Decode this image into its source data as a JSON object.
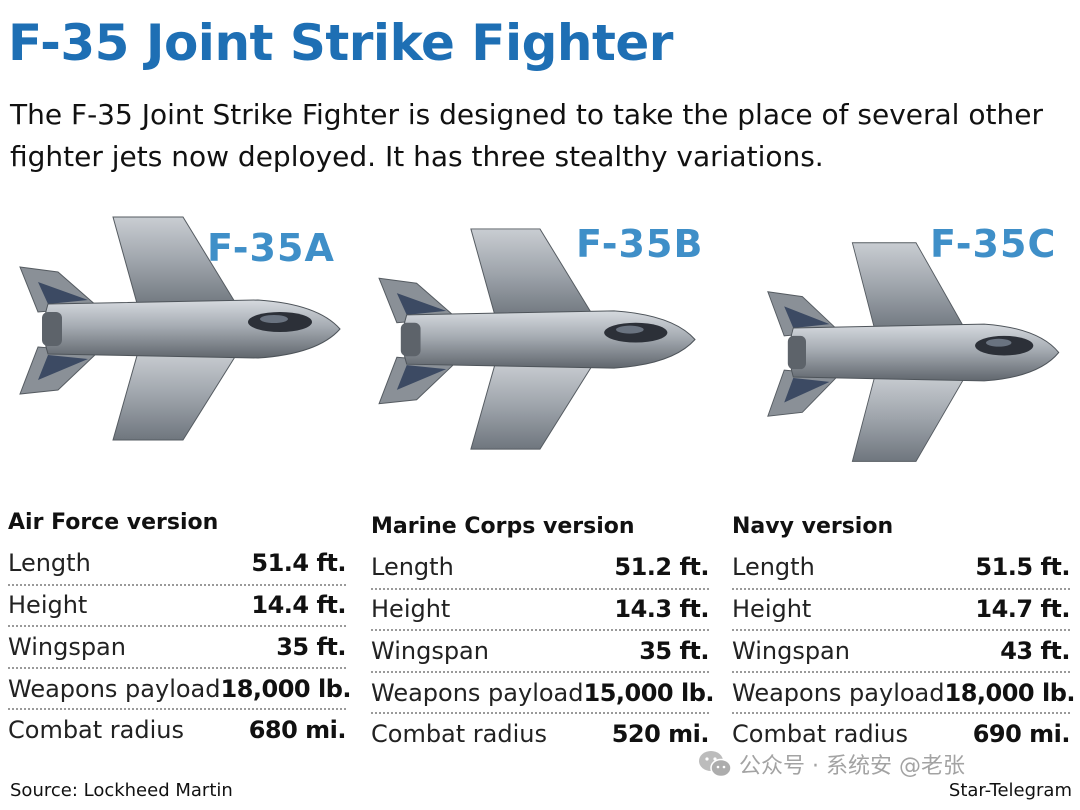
{
  "title": "F-35 Joint Strike Fighter",
  "intro": "The F-35 Joint Strike Fighter is designed to take the place of several other fighter jets now deployed. It has three stealthy variations.",
  "variants": [
    {
      "label": "F-35A",
      "image_icon": "f35a-aircraft-icon",
      "version_title": "Air Force version",
      "specs": [
        {
          "label": "Length",
          "value": "51.4 ft."
        },
        {
          "label": "Height",
          "value": "14.4 ft."
        },
        {
          "label": "Wingspan",
          "value": "35 ft."
        },
        {
          "label": "Weapons payload",
          "value": "18,000 lb."
        },
        {
          "label": "Combat radius",
          "value": "680 mi."
        }
      ]
    },
    {
      "label": "F-35B",
      "image_icon": "f35b-aircraft-icon",
      "version_title": "Marine Corps version",
      "specs": [
        {
          "label": "Length",
          "value": "51.2 ft."
        },
        {
          "label": "Height",
          "value": "14.3 ft."
        },
        {
          "label": "Wingspan",
          "value": "35 ft."
        },
        {
          "label": "Weapons payload",
          "value": "15,000 lb."
        },
        {
          "label": "Combat radius",
          "value": "520 mi."
        }
      ]
    },
    {
      "label": "F-35C",
      "image_icon": "f35c-aircraft-icon",
      "version_title": "Navy version",
      "specs": [
        {
          "label": "Length",
          "value": "51.5 ft."
        },
        {
          "label": "Height",
          "value": "14.7 ft."
        },
        {
          "label": "Wingspan",
          "value": "43 ft."
        },
        {
          "label": "Weapons payload",
          "value": "18,000 lb."
        },
        {
          "label": "Combat radius",
          "value": "690 mi."
        }
      ]
    }
  ],
  "source": "Source: Lockheed Martin",
  "credit": "Star-Telegram",
  "watermark": {
    "icon": "wechat-icon",
    "text": "公众号 · 系统安 @老张"
  },
  "colors": {
    "title": "#1e6fb4",
    "variant_label": "#3f8fc8",
    "text": "#111111"
  }
}
